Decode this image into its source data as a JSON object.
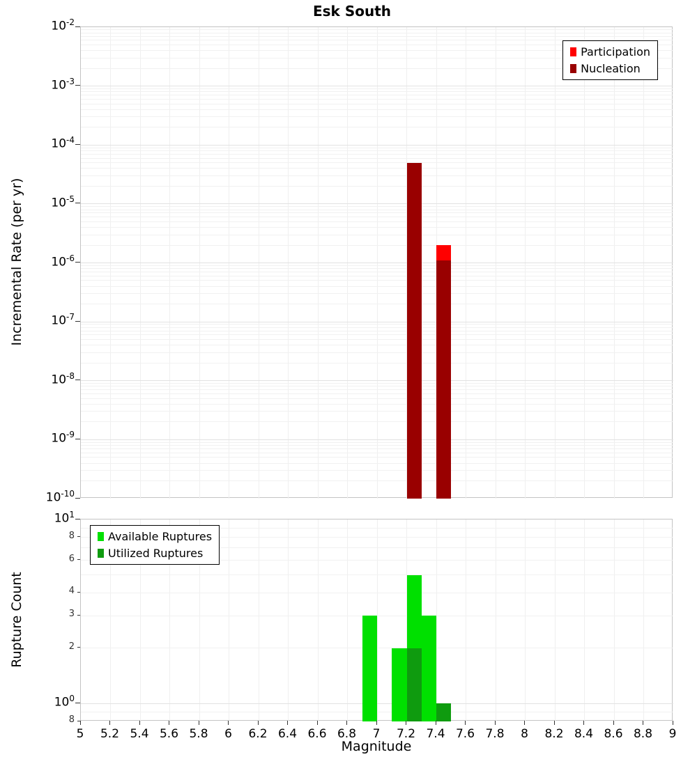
{
  "title": "Esk South",
  "chart_data": [
    {
      "type": "bar",
      "title": "Esk South",
      "xlabel": "Magnitude",
      "ylabel": "Incremental Rate (per yr)",
      "xlim": [
        5,
        9
      ],
      "y_scale": "log",
      "ylim": [
        1e-10,
        0.01
      ],
      "bar_width": 0.1,
      "grid": true,
      "legend_position": "top-right",
      "y_tick_exponents": [
        -2,
        -3,
        -4,
        -5,
        -6,
        -7,
        -8,
        -9,
        -10
      ],
      "series": [
        {
          "name": "Participation",
          "color": "#ff0000",
          "bars": [
            {
              "x": 7.45,
              "value": 2e-06
            }
          ]
        },
        {
          "name": "Nucleation",
          "color": "#990000",
          "bars": [
            {
              "x": 7.25,
              "value": 5e-05
            },
            {
              "x": 7.45,
              "value": 1.1e-06
            }
          ]
        }
      ]
    },
    {
      "type": "bar",
      "title": "",
      "xlabel": "Magnitude",
      "ylabel": "Rupture Count",
      "xlim": [
        5,
        9
      ],
      "y_scale": "log",
      "ylim": [
        0.8,
        10
      ],
      "bar_width": 0.1,
      "grid": true,
      "legend_position": "top-left",
      "x_ticks": [
        "5",
        "5.2",
        "5.4",
        "5.6",
        "5.8",
        "6",
        "6.2",
        "6.4",
        "6.6",
        "6.8",
        "7",
        "7.2",
        "7.4",
        "7.6",
        "7.8",
        "8",
        "8.2",
        "8.4",
        "8.6",
        "8.8",
        "9"
      ],
      "y_tick_exponents": [
        1,
        0
      ],
      "y_minor_ticks": [
        {
          "label": "8",
          "value": 8
        },
        {
          "label": "6",
          "value": 6
        },
        {
          "label": "4",
          "value": 4
        },
        {
          "label": "3",
          "value": 3
        },
        {
          "label": "2",
          "value": 2
        },
        {
          "label": "8",
          "value": 0.8
        }
      ],
      "series": [
        {
          "name": "Available Ruptures",
          "color": "#00e000",
          "bars": [
            {
              "x": 6.95,
              "value": 3
            },
            {
              "x": 7.15,
              "value": 2
            },
            {
              "x": 7.25,
              "value": 5
            },
            {
              "x": 7.35,
              "value": 3
            }
          ]
        },
        {
          "name": "Utilized Ruptures",
          "color": "#0f9b0f",
          "bars": [
            {
              "x": 7.25,
              "value": 2
            },
            {
              "x": 7.45,
              "value": 1
            }
          ]
        }
      ]
    }
  ]
}
